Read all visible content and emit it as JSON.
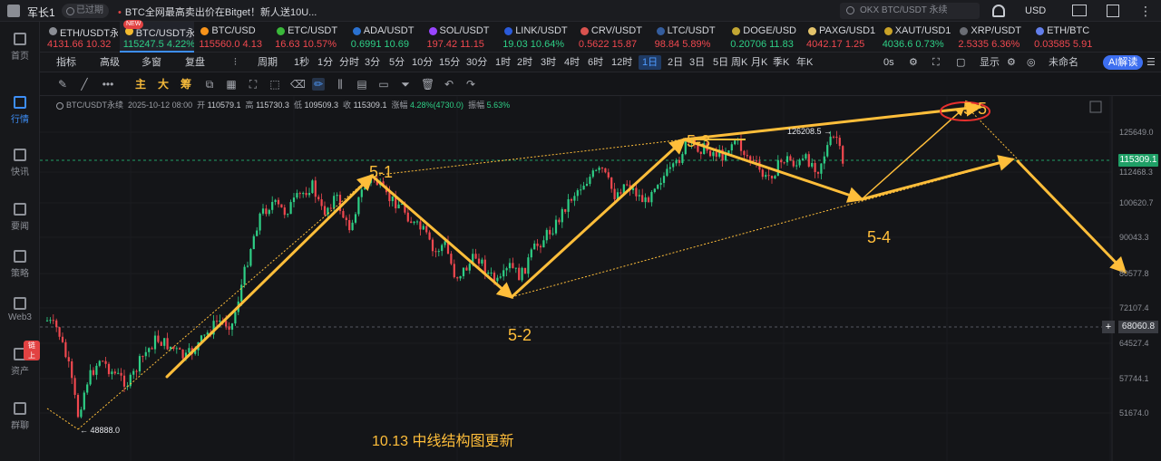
{
  "topbar": {
    "user": "军长1",
    "expired": "已过期",
    "news": "BTC全网最高卖出价在Bitget！新人送10U...",
    "search_placeholder": "OKX BTC/USDT 永续",
    "currency": "USD"
  },
  "sidebar": [
    {
      "label": "首页",
      "active": false
    },
    {
      "label": "行情",
      "active": true
    },
    {
      "label": "快讯",
      "active": false
    },
    {
      "label": "要闻",
      "active": false
    },
    {
      "label": "策略",
      "active": false
    },
    {
      "label": "Web3",
      "active": false
    },
    {
      "label": "资产",
      "active": false,
      "tag": "链上"
    },
    {
      "label": "群聊",
      "active": false
    }
  ],
  "tickers": [
    {
      "symbol": "ETH/USDT永",
      "price": "4131.66",
      "change": "10.32",
      "dir": "down",
      "dot": "#8a8d94"
    },
    {
      "symbol": "BTC/USDT永续",
      "price": "115247.5",
      "change": "4.22%",
      "dir": "up",
      "dot": "#f3ba2f",
      "active": true,
      "new": "NEW"
    },
    {
      "symbol": "BTC/USD",
      "price": "115560.0",
      "change": "4.13",
      "dir": "down",
      "dot": "#f7931a"
    },
    {
      "symbol": "ETC/USDT",
      "price": "16.63",
      "change": "10.57%",
      "dir": "down",
      "dot": "#3ab83a"
    },
    {
      "symbol": "ADA/USDT",
      "price": "0.6991",
      "change": "10.69",
      "dir": "up",
      "dot": "#2a71d0"
    },
    {
      "symbol": "SOL/USDT",
      "price": "197.42",
      "change": "11.15",
      "dir": "down",
      "dot": "#9945ff"
    },
    {
      "symbol": "LINK/USDT",
      "price": "19.03",
      "change": "10.64%",
      "dir": "up",
      "dot": "#2a5ada"
    },
    {
      "symbol": "CRV/USDT",
      "price": "0.5622",
      "change": "15.87",
      "dir": "down",
      "dot": "#d9534f"
    },
    {
      "symbol": "LTC/USDT",
      "price": "98.84",
      "change": "5.89%",
      "dir": "down",
      "dot": "#345d9d"
    },
    {
      "symbol": "DOGE/USD",
      "price": "0.20706",
      "change": "11.83",
      "dir": "up",
      "dot": "#c2a633"
    },
    {
      "symbol": "PAXG/USD1",
      "price": "4042.17",
      "change": "1.25",
      "dir": "down",
      "dot": "#e4c46b"
    },
    {
      "symbol": "XAUT/USD1",
      "price": "4036.6",
      "change": "0.73%",
      "dir": "up",
      "dot": "#c9a227"
    },
    {
      "symbol": "XRP/USDT",
      "price": "2.5335",
      "change": "6.36%",
      "dir": "down",
      "dot": "#6a6d74"
    },
    {
      "symbol": "ETH/BTC",
      "price": "0.03585",
      "change": "5.91",
      "dir": "down",
      "dot": "#627eea"
    }
  ],
  "periodbar": {
    "left_tools": [
      "指标",
      "高级",
      "多窗",
      "复盘"
    ],
    "period": "周期",
    "periods": [
      "1秒",
      "1分",
      "分时",
      "3分",
      "5分",
      "10分",
      "15分",
      "30分",
      "1时",
      "2时",
      "3时",
      "4时",
      "6时",
      "12时",
      "1日",
      "2日",
      "3日",
      "5日",
      "周K",
      "月K",
      "季K",
      "年K"
    ],
    "selected": "1日",
    "right_tools": {
      "zero": "0s",
      "display": "显示",
      "unnamed": "未命名",
      "ai": "AI解读"
    }
  },
  "drawbar": {
    "chinese_tools": [
      "主",
      "大",
      "筹"
    ]
  },
  "info": {
    "symbol": "BTC/USDT永续",
    "date": "2025-10-12 08:00",
    "open_label": "开",
    "open": "110579.1",
    "high_label": "高",
    "high": "115730.3",
    "low_label": "低",
    "low": "109509.3",
    "close_label": "收",
    "close": "115309.1",
    "chg_label": "涨幅",
    "chg": "4.28%(4730.0)",
    "amp_label": "振幅",
    "amp": "5.63%"
  },
  "chart": {
    "price_axis": [
      "125649.0",
      "112468.3",
      "100620.7",
      "90043.3",
      "80577.8",
      "72107.4",
      "64527.4",
      "57744.1",
      "51674.0"
    ],
    "current_price": "115309.1",
    "cursor_price": "68060.8",
    "high_label": "126208.5",
    "low_label": "48888.0",
    "waves": [
      "5-1",
      "5-2",
      "5-3",
      "5-4",
      "5-5"
    ],
    "caption": "10.13 中线结构图更新",
    "colors": {
      "up": "#2ecf86",
      "down": "#f0484f",
      "annotation": "#ffbe3a"
    }
  }
}
